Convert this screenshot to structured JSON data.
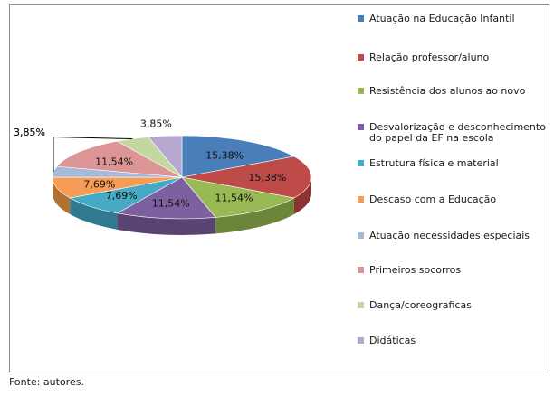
{
  "chart_data": {
    "type": "pie",
    "title": "",
    "categories": [
      "Atuação na Educação Infantil",
      "Relação professor/aluno",
      "Resistência dos alunos ao novo",
      "Desvalorização e desconhecimento do papel da EF na escola",
      "Estrutura física e material",
      "Descaso com a Educação",
      "Atuação necessidades especiais",
      "Primeiros socorros",
      "Dança/coreograficas",
      "Didáticas"
    ],
    "values": [
      15.38,
      15.38,
      11.54,
      11.54,
      7.69,
      7.69,
      3.85,
      11.54,
      3.85,
      3.85
    ],
    "value_labels": [
      "15,38%",
      "15,38%",
      "11,54%",
      "11,54%",
      "7,69%",
      "7,69%",
      "3,85%",
      "11,54%",
      "3,85%",
      "3,85%"
    ],
    "colors": [
      "#4a7ebb",
      "#be4b48",
      "#98b954",
      "#7d60a0",
      "#46aac4",
      "#f59d56",
      "#a5b9da",
      "#dc9594",
      "#c4d7a0",
      "#b7a7ce"
    ],
    "side_colors": [
      "#33598a",
      "#8a3331",
      "#6c853a",
      "#594373",
      "#2f7a8e",
      "#b1712e",
      "#7487a6",
      "#a56968",
      "#8ea06f",
      "#8576a0"
    ],
    "legend_position": "right",
    "style": "3d"
  },
  "legend": {
    "items": [
      "Atuação na Educação Infantil",
      "Relação professor/aluno",
      "Resistência dos alunos ao novo",
      "Desvalorização e desconhecimento do papel da EF na escola",
      "Estrutura física e material",
      "Descaso com a Educação",
      "Atuação necessidades especiais",
      "Primeiros socorros",
      "Dança/coreograficas",
      "Didáticas"
    ]
  },
  "source": "Fonte: autores."
}
